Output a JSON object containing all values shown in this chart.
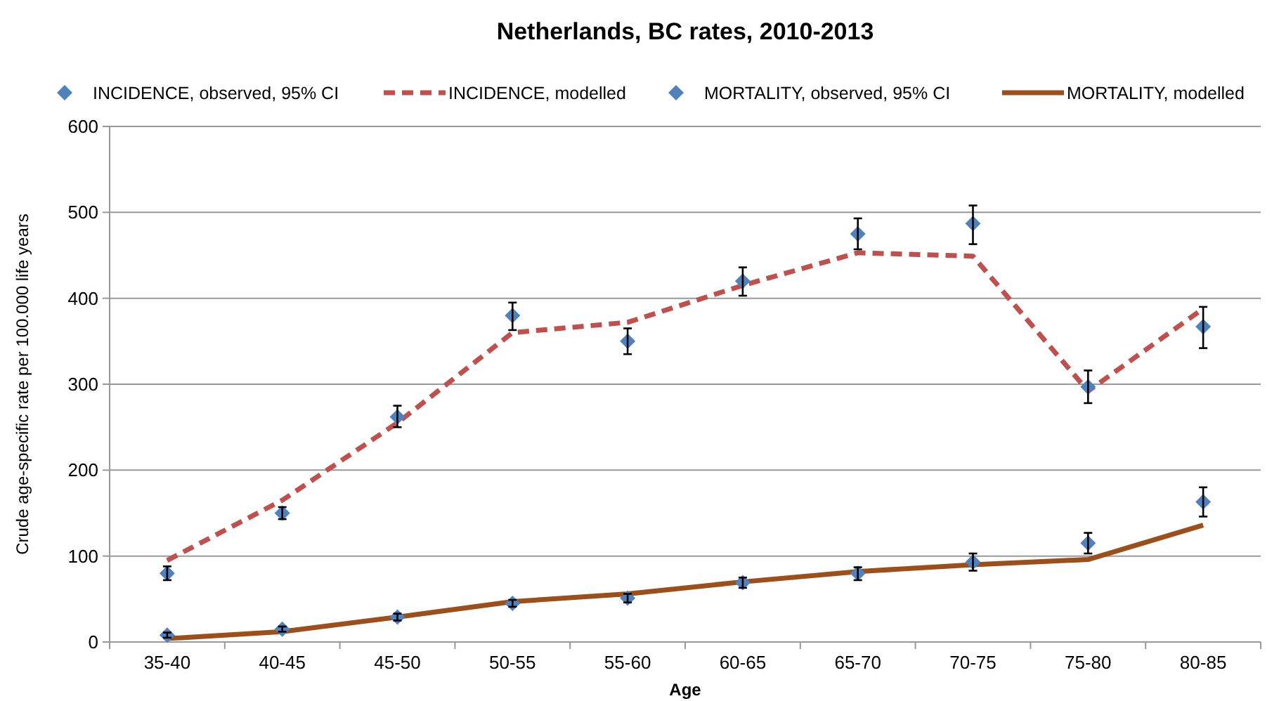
{
  "chart_data": {
    "type": "line",
    "title": "Netherlands, BC rates, 2010-2013",
    "xlabel": "Age",
    "ylabel": "Crude age-specific rate per 100.000 life years",
    "categories": [
      "35-40",
      "40-45",
      "45-50",
      "50-55",
      "55-60",
      "60-65",
      "65-70",
      "70-75",
      "75-80",
      "80-85"
    ],
    "ylim": [
      0,
      600
    ],
    "yticks": [
      0,
      100,
      200,
      300,
      400,
      500,
      600
    ],
    "grid": "y",
    "legend": "top",
    "series": [
      {
        "name": "INCIDENCE, observed, 95% CI",
        "type": "scatter",
        "marker": "diamond",
        "color": "#4f81bd",
        "values": [
          80,
          150,
          262,
          380,
          350,
          420,
          475,
          487,
          297,
          367
        ],
        "errors": [
          [
            72,
            88
          ],
          [
            143,
            157
          ],
          [
            250,
            275
          ],
          [
            363,
            395
          ],
          [
            335,
            365
          ],
          [
            403,
            436
          ],
          [
            457,
            493
          ],
          [
            463,
            508
          ],
          [
            278,
            316
          ],
          [
            342,
            390
          ]
        ]
      },
      {
        "name": "INCIDENCE, modelled",
        "line_style": "dashed",
        "color": "#c0504d",
        "values": [
          95,
          165,
          255,
          360,
          372,
          415,
          453,
          449,
          292,
          388
        ]
      },
      {
        "name": "MORTALITY, observed, 95% CI",
        "type": "scatter",
        "marker": "diamond",
        "color": "#4f81bd",
        "values": [
          8,
          15,
          29,
          45,
          51,
          69,
          80,
          93,
          115,
          163
        ],
        "errors": [
          [
            5,
            11
          ],
          [
            12,
            18
          ],
          [
            25,
            33
          ],
          [
            41,
            49
          ],
          [
            46,
            56
          ],
          [
            63,
            75
          ],
          [
            72,
            87
          ],
          [
            83,
            103
          ],
          [
            103,
            127
          ],
          [
            146,
            180
          ]
        ]
      },
      {
        "name": "MORTALITY, modelled",
        "line_style": "solid",
        "color": "#9c4f1a",
        "values": [
          4,
          12,
          29,
          47,
          56,
          70,
          82,
          90,
          96,
          136
        ]
      }
    ]
  }
}
